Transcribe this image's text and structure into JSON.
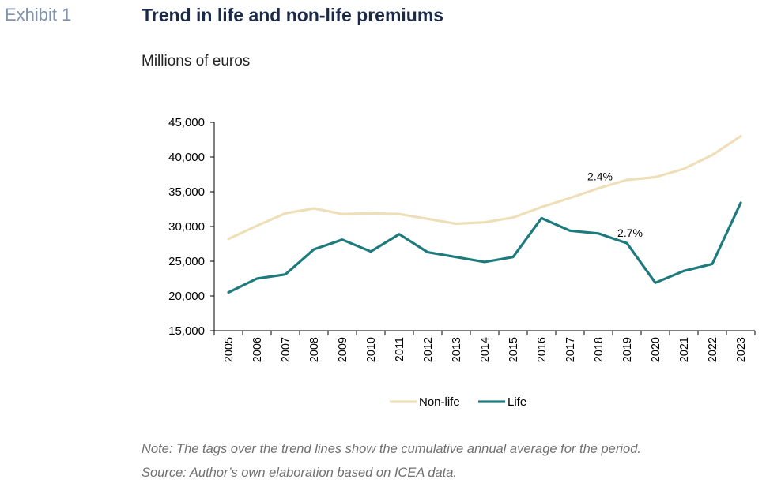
{
  "header": {
    "exhibit": "Exhibit 1",
    "title": "Trend in life and non-life premiums",
    "subtitle": "Millions of euros"
  },
  "notes": {
    "note": "Note: The tags over the trend lines show the cumulative annual average for the period.",
    "source": "Source: Author’s own elaboration based on ICEA data."
  },
  "chart_data": {
    "type": "line",
    "title": "Trend in life and non-life premiums",
    "subtitle": "Millions of euros",
    "x": [
      "2005",
      "2006",
      "2007",
      "2008",
      "2009",
      "2010",
      "2011",
      "2012",
      "2013",
      "2014",
      "2015",
      "2016",
      "2017",
      "2018",
      "2019",
      "2020",
      "2021",
      "2022",
      "2023"
    ],
    "ylim": [
      15000,
      45000
    ],
    "yticks": [
      15000,
      20000,
      25000,
      30000,
      35000,
      40000,
      45000
    ],
    "ytick_labels": [
      "15,000",
      "20,000",
      "25,000",
      "30,000",
      "35,000",
      "40,000",
      "45,000"
    ],
    "grid": false,
    "legend": "bottom-center",
    "series": [
      {
        "name": "Non-life",
        "color": "#efdfb9",
        "values": [
          28200,
          30100,
          31900,
          32600,
          31800,
          31900,
          31800,
          31100,
          30400,
          30600,
          31300,
          32800,
          34100,
          35500,
          36700,
          37100,
          38300,
          40300,
          43000
        ],
        "annotation": {
          "text": "2.4%",
          "at": "2018"
        }
      },
      {
        "name": "Life",
        "color": "#1d7a7d",
        "values": [
          20500,
          22500,
          23100,
          26700,
          28100,
          26400,
          28900,
          26300,
          25600,
          24900,
          25600,
          31200,
          29400,
          29000,
          27600,
          21900,
          23600,
          24600,
          33400
        ],
        "annotation": {
          "text": "2.7%",
          "at": "2019"
        }
      }
    ]
  }
}
